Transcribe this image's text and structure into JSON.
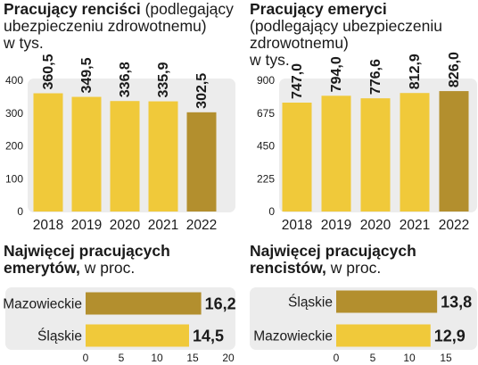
{
  "chart_data": [
    {
      "type": "bar",
      "title": "Pracujący renciści",
      "subtitle": "(podlegający ubezpieczeniu zdrowotnemu)",
      "unit_label": "w tys.",
      "categories": [
        "2018",
        "2019",
        "2020",
        "2021",
        "2022"
      ],
      "values": [
        360.5,
        349.5,
        336.8,
        335.9,
        302.5
      ],
      "value_labels": [
        "360,5",
        "349,5",
        "336,8",
        "335,9",
        "302,5"
      ],
      "yticks": [
        0,
        100,
        200,
        300,
        400
      ],
      "ylim": [
        0,
        400
      ],
      "grid": false,
      "colors": [
        "#f0c93a",
        "#f0c93a",
        "#f0c93a",
        "#f0c93a",
        "#b38f2e"
      ],
      "background_color": "#ececec"
    },
    {
      "type": "bar",
      "title": "Pracujący emeryci",
      "subtitle": "(podlegający ubezpieczeniu zdrowotnemu)",
      "unit_label": "w tys.",
      "categories": [
        "2018",
        "2019",
        "2020",
        "2021",
        "2022"
      ],
      "values": [
        747.0,
        794.0,
        776.6,
        812.9,
        826.0
      ],
      "value_labels": [
        "747,0",
        "794,0",
        "776,6",
        "812,9",
        "826,0"
      ],
      "yticks": [
        0,
        225,
        450,
        675,
        900
      ],
      "ylim": [
        0,
        900
      ],
      "grid": false,
      "colors": [
        "#f0c93a",
        "#f0c93a",
        "#f0c93a",
        "#f0c93a",
        "#b38f2e"
      ],
      "background_color": "#ececec"
    },
    {
      "type": "bar",
      "orientation": "horizontal",
      "title": "Najwięcej pracujących emerytów,",
      "unit_label": "w proc.",
      "categories": [
        "Mazowieckie",
        "Śląskie"
      ],
      "values": [
        16.2,
        14.5
      ],
      "value_labels": [
        "16,2",
        "14,5"
      ],
      "xticks": [
        0,
        5,
        10,
        15,
        20
      ],
      "xlim": [
        0,
        20
      ],
      "grid": false,
      "colors": [
        "#b38f2e",
        "#f0c93a"
      ],
      "background_color": "#ececec"
    },
    {
      "type": "bar",
      "orientation": "horizontal",
      "title": "Najwięcej pracujących rencistów,",
      "unit_label": "w proc.",
      "categories": [
        "Śląskie",
        "Mazowieckie"
      ],
      "values": [
        13.8,
        12.9
      ],
      "value_labels": [
        "13,8",
        "12,9"
      ],
      "xticks": [
        0,
        5,
        10,
        15
      ],
      "xlim": [
        0,
        15
      ],
      "grid": false,
      "colors": [
        "#b38f2e",
        "#f0c93a"
      ],
      "background_color": "#ececec"
    }
  ]
}
